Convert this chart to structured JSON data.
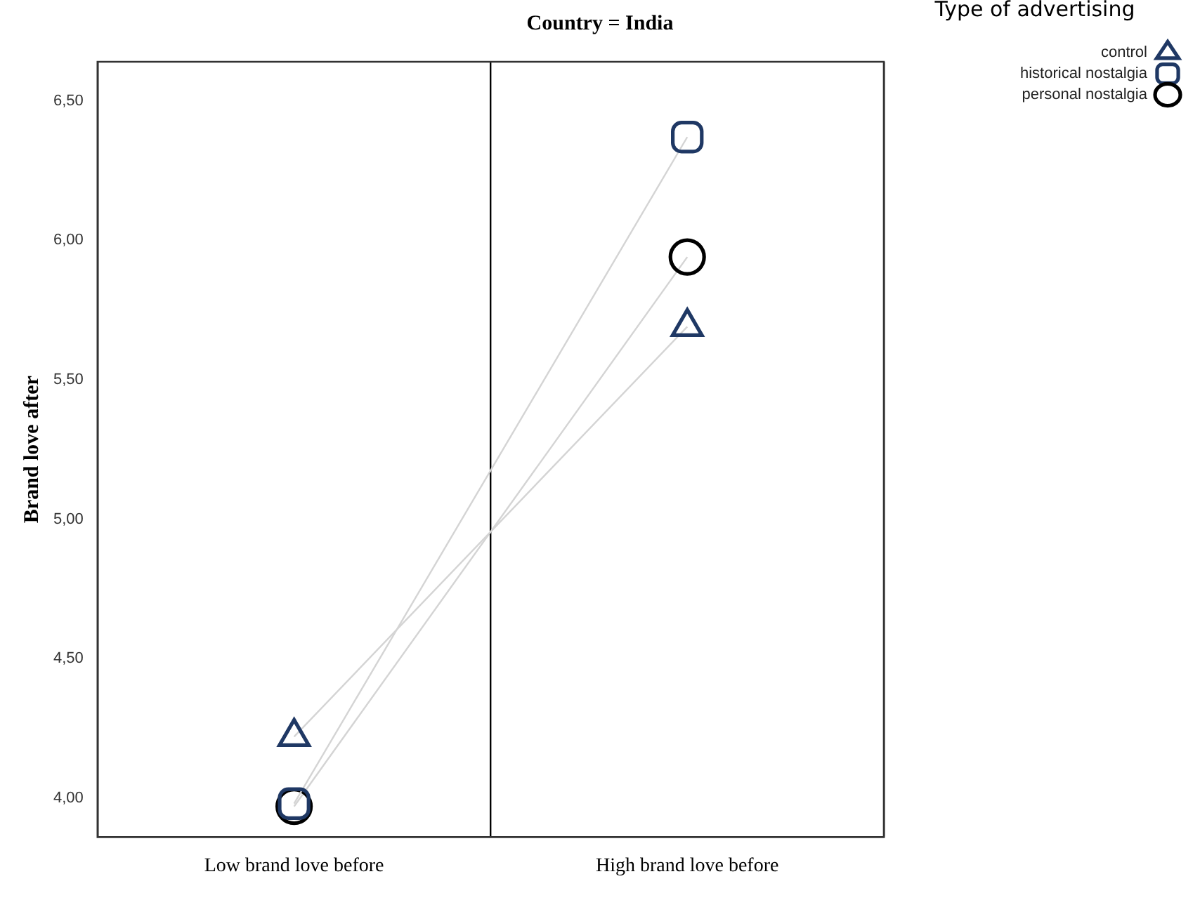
{
  "chart_data": {
    "type": "line",
    "title": "Country = India",
    "xlabel": null,
    "ylabel": "Brand love after",
    "legend_title": "Type of advertising",
    "categories": [
      "Low brand love before",
      "High brand love before"
    ],
    "series": [
      {
        "name": "control",
        "color": "#1f3864",
        "marker": "triangle",
        "values": [
          4.22,
          5.69
        ]
      },
      {
        "name": "historical nostalgia",
        "color": "#1f3864",
        "marker": "square",
        "values": [
          3.98,
          6.37
        ]
      },
      {
        "name": "personal nostalgia",
        "color": "#000000",
        "marker": "circle",
        "values": [
          3.97,
          5.94
        ]
      }
    ],
    "ylim": [
      3.86,
      6.64
    ],
    "yticks": [
      {
        "value": 4,
        "label": "4,00"
      },
      {
        "value": 4.5,
        "label": "4,50"
      },
      {
        "value": 5,
        "label": "5,00"
      },
      {
        "value": 5.5,
        "label": "5,50"
      },
      {
        "value": 6,
        "label": "6,00"
      },
      {
        "value": 6.5,
        "label": "6,50"
      }
    ],
    "grid": "x",
    "legend": "top right"
  }
}
